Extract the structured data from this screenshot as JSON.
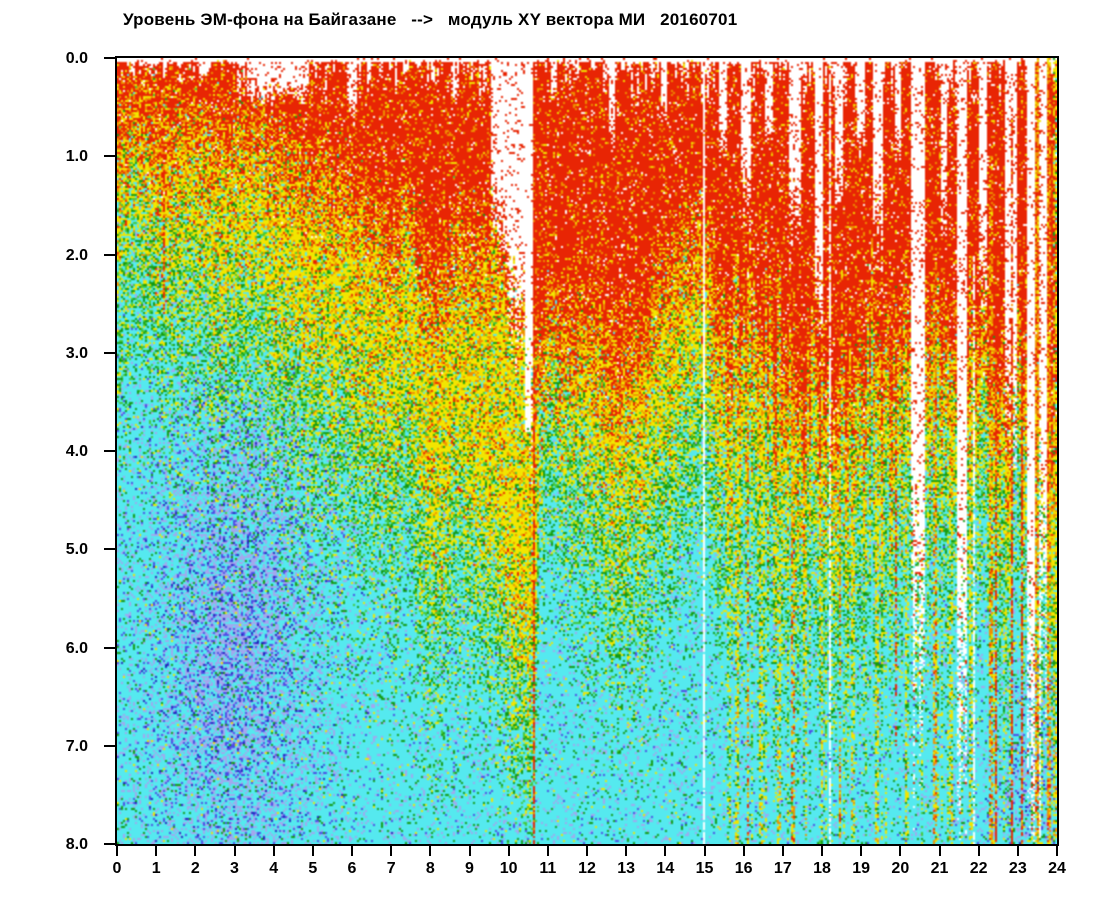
{
  "title": "Уровень ЭМ-фона на Байгазане   -->   модуль XY вектора МИ   20160701",
  "chart_data": {
    "type": "heatmap",
    "variant": "spectrogram_scatter",
    "title": "Уровень ЭМ-фона на Байгазане   -->   модуль XY вектора МИ   20160701",
    "date_label": "20160701",
    "grid": false,
    "legend": false,
    "x": {
      "min": 0,
      "max": 24,
      "ticks": [
        "0",
        "1",
        "2",
        "3",
        "4",
        "5",
        "6",
        "7",
        "8",
        "9",
        "10",
        "11",
        "12",
        "13",
        "14",
        "15",
        "16",
        "17",
        "18",
        "19",
        "20",
        "21",
        "22",
        "23",
        "24"
      ]
    },
    "y": {
      "min": 0,
      "max": 8,
      "inverted": true,
      "ticks": [
        "0.0",
        "1.0",
        "2.0",
        "3.0",
        "4.0",
        "5.0",
        "6.0",
        "7.0",
        "8.0"
      ]
    },
    "palette": {
      "red": "#e82504",
      "orange": "#ef9100",
      "yellow": "#f2e500",
      "green1": "#149b14",
      "green2": "#45c83a",
      "cyan": "#55e9ef",
      "lavender": "#a3a7ee",
      "blue": "#4d4ce4",
      "darkblue": "#2222bb",
      "white": "#ffffff"
    },
    "model": {
      "seed": 20160701,
      "jitter": 1.1,
      "orange_band": 0.35,
      "green_band": 1.2,
      "cyan_near_band": 1.2,
      "teeth_max": 0.45,
      "col_smooth_amp": 0.2,
      "col_hf_amp_left": 0.22,
      "col_hf_amp_right": 0.7,
      "right_streak_start": 15.3,
      "right_streak_threshold": 0.8,
      "red_depth_knots": [
        [
          0,
          0.65
        ],
        [
          1,
          0.7
        ],
        [
          2,
          0.65
        ],
        [
          3,
          0.72
        ],
        [
          4,
          0.8
        ],
        [
          5,
          1.0
        ],
        [
          6,
          1.3
        ],
        [
          7,
          1.6
        ],
        [
          8,
          2.0
        ],
        [
          9,
          2.2
        ],
        [
          9.6,
          2.1
        ],
        [
          10.6,
          2.3
        ],
        [
          10.8,
          2.7
        ],
        [
          11.5,
          2.5
        ],
        [
          12,
          2.3
        ],
        [
          12.8,
          2.9
        ],
        [
          13.5,
          2.5
        ],
        [
          14.2,
          1.8
        ],
        [
          14.8,
          2.0
        ],
        [
          15.3,
          2.4
        ],
        [
          16,
          2.8
        ],
        [
          17,
          3.1
        ],
        [
          18,
          3.3
        ],
        [
          19,
          3.0
        ],
        [
          20,
          3.3
        ],
        [
          20.5,
          3.0
        ],
        [
          21,
          3.2
        ],
        [
          22,
          3.3
        ],
        [
          23,
          3.6
        ],
        [
          24,
          3.4
        ]
      ],
      "yellow_depth_knots": [
        [
          0,
          1.7
        ],
        [
          1,
          1.9
        ],
        [
          2,
          2.1
        ],
        [
          3,
          2.3
        ],
        [
          4,
          2.5
        ],
        [
          5,
          2.8
        ],
        [
          6,
          3.2
        ],
        [
          7,
          3.7
        ],
        [
          8,
          4.4
        ],
        [
          9,
          5.1
        ],
        [
          10,
          5.7
        ],
        [
          10.6,
          5.9
        ],
        [
          10.8,
          3.4
        ],
        [
          11.5,
          3.5
        ],
        [
          12,
          3.7
        ],
        [
          12.8,
          4.4
        ],
        [
          13.5,
          4.1
        ],
        [
          14,
          3.7
        ],
        [
          14.5,
          3.5
        ],
        [
          15,
          3.6
        ],
        [
          16,
          4.2
        ],
        [
          17,
          4.5
        ],
        [
          18,
          4.7
        ],
        [
          19,
          4.3
        ],
        [
          20,
          4.5
        ],
        [
          21,
          4.3
        ],
        [
          22,
          4.5
        ],
        [
          23,
          4.9
        ],
        [
          24,
          4.7
        ]
      ],
      "white_top_gaps": [
        [
          2.1,
          2.35,
          0.2,
          0.1,
          0
        ],
        [
          3.3,
          4.9,
          0.35,
          0.15,
          0
        ],
        [
          5.9,
          6.15,
          0.5,
          0.12,
          0
        ],
        [
          8.6,
          8.75,
          0.4,
          0.12,
          0
        ],
        [
          9.55,
          10.62,
          3.2,
          0.13,
          1
        ],
        [
          12.55,
          12.7,
          0.8,
          0.12,
          0
        ],
        [
          13.9,
          14.05,
          0.5,
          0.12,
          0
        ],
        [
          15.35,
          15.55,
          0.9,
          0.12,
          0
        ],
        [
          15.95,
          16.2,
          1.3,
          0.12,
          0
        ],
        [
          16.55,
          16.75,
          0.7,
          0.12,
          0
        ],
        [
          17.15,
          17.45,
          1.6,
          0.12,
          0
        ],
        [
          17.8,
          18.05,
          2.3,
          0.1,
          0
        ],
        [
          18.35,
          18.55,
          1.2,
          0.12,
          0
        ],
        [
          18.9,
          19.1,
          0.8,
          0.12,
          0
        ],
        [
          19.3,
          19.55,
          1.7,
          0.12,
          0
        ],
        [
          19.85,
          20.0,
          1.0,
          0.12,
          0
        ],
        [
          20.25,
          20.65,
          5.5,
          0.12,
          0
        ],
        [
          21.05,
          21.2,
          1.5,
          0.12,
          0
        ],
        [
          21.45,
          21.7,
          7.0,
          0.1,
          0
        ],
        [
          22.0,
          22.2,
          2.2,
          0.1,
          0
        ],
        [
          22.65,
          23.0,
          3.2,
          0.12,
          0
        ],
        [
          23.25,
          23.45,
          6.5,
          0.08,
          0
        ],
        [
          23.6,
          23.72,
          5.0,
          0.1,
          0
        ]
      ],
      "stripes": [
        [
          1.22,
          0.05,
          "red",
          0.3,
          2.6,
          0.5
        ],
        [
          7.0,
          0.04,
          "red",
          0.3,
          1.8,
          0.45
        ],
        [
          10.5,
          0.12,
          "white",
          0.0,
          3.8,
          0.85
        ],
        [
          10.64,
          0.07,
          "red",
          0.35,
          8,
          0.85
        ],
        [
          10.82,
          0.2,
          "red",
          0.3,
          3.0,
          0.3
        ],
        [
          15.0,
          0.05,
          "white",
          0,
          8,
          0.9
        ],
        [
          15.85,
          0.1,
          "yellow",
          2,
          8,
          0.6
        ],
        [
          16.1,
          0.07,
          "orange",
          2.5,
          8,
          0.5
        ],
        [
          16.45,
          0.08,
          "yellow",
          3,
          8,
          0.55
        ],
        [
          16.9,
          0.06,
          "yellow",
          2,
          8,
          0.5
        ],
        [
          17.25,
          0.1,
          "orange",
          3,
          8,
          0.5
        ],
        [
          17.6,
          0.07,
          "yellow",
          4,
          8,
          0.5
        ],
        [
          18.0,
          0.09,
          "yellow",
          3,
          8,
          0.55
        ],
        [
          18.2,
          0.04,
          "white",
          0,
          8,
          0.75
        ],
        [
          18.45,
          0.06,
          "orange",
          4,
          8,
          0.5
        ],
        [
          18.8,
          0.08,
          "yellow",
          3.5,
          8,
          0.5
        ],
        [
          19.4,
          0.07,
          "yellow",
          4,
          8,
          0.5
        ],
        [
          19.9,
          0.05,
          "red",
          3,
          7,
          0.55
        ],
        [
          20.15,
          0.08,
          "yellow",
          3,
          8,
          0.5
        ],
        [
          20.9,
          0.1,
          "orange",
          2,
          8,
          0.55
        ],
        [
          21.3,
          0.07,
          "yellow",
          3,
          8,
          0.5
        ],
        [
          21.8,
          0.06,
          "yellow",
          2,
          8,
          0.5
        ],
        [
          21.9,
          0.03,
          "white",
          2,
          8,
          0.7
        ],
        [
          22.3,
          0.1,
          "orange",
          1,
          8,
          0.6
        ],
        [
          22.45,
          0.05,
          "red",
          0.5,
          8,
          0.7
        ],
        [
          22.85,
          0.06,
          "red",
          0.5,
          8,
          0.7
        ],
        [
          23.1,
          0.08,
          "red",
          0,
          8,
          0.75
        ],
        [
          23.5,
          0.1,
          "orange",
          0,
          8,
          0.65
        ],
        [
          23.55,
          0.04,
          "white",
          0,
          8,
          0.6
        ],
        [
          23.8,
          0.12,
          "orange",
          0,
          8,
          0.6
        ],
        [
          23.95,
          0.06,
          "yellow",
          0,
          8,
          0.6
        ]
      ],
      "purple_blobs": [
        [
          3.0,
          1.9,
          5.9,
          2.4,
          0.6,
          3.1
        ],
        [
          23.4,
          0.9,
          7.4,
          1.0,
          0.3,
          6.0
        ]
      ],
      "mixes": {
        "red_zone": [
          [
            "red",
            0.85
          ],
          [
            "orange",
            0.07
          ],
          [
            "yellow",
            0.04
          ],
          [
            "white",
            0.04
          ]
        ],
        "orange_band": [
          [
            "orange",
            0.44
          ],
          [
            "red",
            0.3
          ],
          [
            "yellow",
            0.26
          ]
        ],
        "yellow_zone": [
          [
            "yellow",
            0.58
          ],
          [
            "orange",
            0.13
          ],
          [
            "green1",
            0.07
          ],
          [
            "green2",
            0.07
          ],
          [
            "cyan",
            0.09
          ],
          [
            "red",
            0.06
          ]
        ],
        "green_zone": [
          [
            "green1",
            0.2
          ],
          [
            "green2",
            0.18
          ],
          [
            "yellow",
            0.2
          ],
          [
            "cyan",
            0.38
          ],
          [
            "lavender",
            0.04
          ]
        ],
        "cyan_near": [
          [
            "cyan",
            0.76
          ],
          [
            "green1",
            0.08
          ],
          [
            "green2",
            0.04
          ],
          [
            "yellow",
            0.04
          ],
          [
            "lavender",
            0.06
          ],
          [
            "blue",
            0.02
          ]
        ],
        "cyan_far": [
          [
            "cyan",
            0.85
          ],
          [
            "green1",
            0.04
          ],
          [
            "lavender",
            0.08
          ],
          [
            "blue",
            0.02
          ],
          [
            "yellow",
            0.01
          ]
        ],
        "purple": [
          [
            "lavender",
            0.62
          ],
          [
            "blue",
            0.28
          ],
          [
            "darkblue",
            0.1
          ]
        ],
        "right_streak": [
          [
            "yellow",
            0.32
          ],
          [
            "green1",
            0.15
          ],
          [
            "green2",
            0.13
          ],
          [
            "cyan",
            0.4
          ]
        ],
        "stripe_red": [
          [
            "red",
            0.8
          ],
          [
            "orange",
            0.15
          ],
          [
            "yellow",
            0.05
          ]
        ],
        "stripe_orange": [
          [
            "orange",
            0.5
          ],
          [
            "red",
            0.22
          ],
          [
            "yellow",
            0.28
          ]
        ],
        "stripe_yellow": [
          [
            "yellow",
            0.6
          ],
          [
            "orange",
            0.15
          ],
          [
            "green1",
            0.12
          ],
          [
            "cyan",
            0.13
          ]
        ]
      }
    }
  }
}
